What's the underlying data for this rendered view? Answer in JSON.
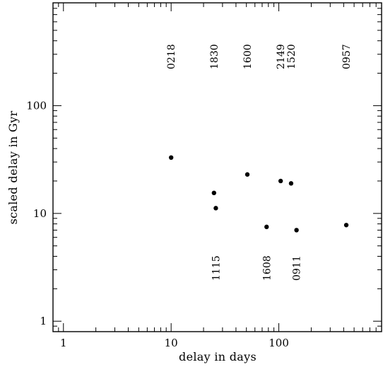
{
  "chart_data": {
    "type": "scatter",
    "xlabel": "delay in days",
    "ylabel": "scaled delay in Gyr",
    "xscale": "log",
    "yscale": "log",
    "xlim": [
      0.8,
      900
    ],
    "ylim": [
      0.8,
      900
    ],
    "xticks": [
      {
        "value": 1,
        "label": "1"
      },
      {
        "value": 10,
        "label": "10"
      },
      {
        "value": 100,
        "label": "100"
      }
    ],
    "yticks": [
      {
        "value": 1,
        "label": "1"
      },
      {
        "value": 10,
        "label": "10"
      },
      {
        "value": 100,
        "label": "100"
      }
    ],
    "points": [
      {
        "x": 10,
        "y": 33,
        "label": "0218",
        "label_position": "top"
      },
      {
        "x": 25,
        "y": 15.5,
        "label": "1830",
        "label_position": "top"
      },
      {
        "x": 26,
        "y": 11.2,
        "label": "1115",
        "label_position": "bottom"
      },
      {
        "x": 51,
        "y": 23,
        "label": "1600",
        "label_position": "top"
      },
      {
        "x": 77,
        "y": 7.5,
        "label": "1608",
        "label_position": "bottom"
      },
      {
        "x": 104,
        "y": 20,
        "label": "2149",
        "label_position": "top"
      },
      {
        "x": 130,
        "y": 19,
        "label": "1520",
        "label_position": "top"
      },
      {
        "x": 146,
        "y": 7,
        "label": "0911",
        "label_position": "bottom"
      },
      {
        "x": 423,
        "y": 7.8,
        "label": "0957",
        "label_position": "top"
      }
    ],
    "grid": false,
    "legend": "none",
    "colors": {
      "marker": "#000000",
      "axes": "#000000"
    }
  }
}
